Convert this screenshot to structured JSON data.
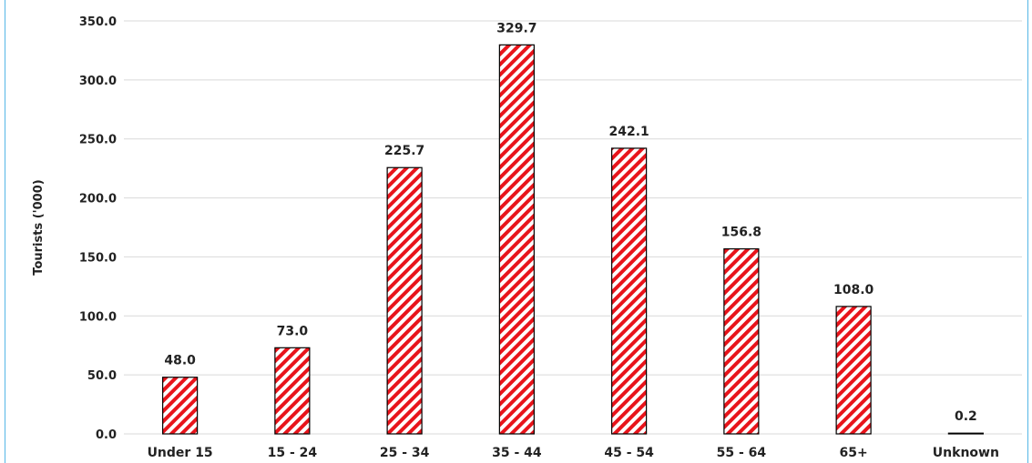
{
  "chart_data": {
    "type": "bar",
    "title": "",
    "xlabel": "",
    "ylabel": "Tourists ('000)",
    "categories": [
      "Under 15",
      "15 - 24",
      "25 - 34",
      "35 - 44",
      "45 - 54",
      "55 - 64",
      "65+",
      "Unknown"
    ],
    "series": [
      {
        "values": [
          48.0,
          73.0,
          225.7,
          329.7,
          242.1,
          156.8,
          108.0,
          0.2
        ],
        "data_labels": [
          "48.0",
          "73.0",
          "225.7",
          "329.7",
          "242.1",
          "156.8",
          "108.0",
          "0.2"
        ]
      }
    ],
    "ylim": [
      0,
      350
    ],
    "yticks": [
      "0.0",
      "50.0",
      "100.0",
      "150.0",
      "200.0",
      "250.0",
      "300.0",
      "350.0"
    ],
    "ytick_values": [
      0,
      50,
      100,
      150,
      200,
      250,
      300,
      350
    ],
    "grid": true,
    "legend": "none",
    "bar_pattern": "diagonal-stripes",
    "colors": {
      "bar_stripe": "#e8141b",
      "bar_background": "#ffffff",
      "bar_outline": "#000000",
      "frame": "#55b6e6",
      "gridline": "#d9d9d9"
    }
  }
}
